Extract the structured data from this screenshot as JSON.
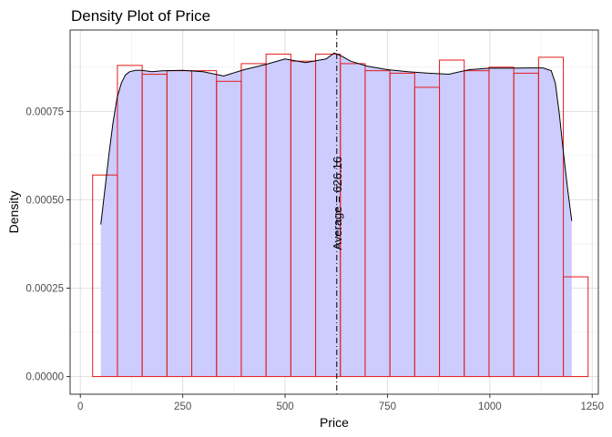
{
  "chart_data": {
    "type": "histogram+density",
    "title": "Density Plot of Price",
    "xlabel": "Price",
    "ylabel": "Density",
    "xlim": [
      -25,
      1265
    ],
    "ylim": [
      -5e-05,
      0.00098
    ],
    "x_ticks": [
      0,
      250,
      500,
      750,
      1000,
      1250
    ],
    "x_tick_labels": [
      "0",
      "250",
      "500",
      "750",
      "1000",
      "1250"
    ],
    "y_ticks": [
      0,
      0.00025,
      0.0005,
      0.00075
    ],
    "y_tick_labels": [
      "0.00000",
      "0.00025",
      "0.00050",
      "0.00075"
    ],
    "grid": true,
    "histogram": {
      "bin_width": 60.5,
      "border_color": "#e41a1c",
      "bins": [
        {
          "x0": 30,
          "x1": 90.5,
          "density": 0.00057
        },
        {
          "x0": 90.5,
          "x1": 151,
          "density": 0.00088
        },
        {
          "x0": 151,
          "x1": 211.5,
          "density": 0.000855
        },
        {
          "x0": 211.5,
          "x1": 272,
          "density": 0.000865
        },
        {
          "x0": 272,
          "x1": 332.5,
          "density": 0.000865
        },
        {
          "x0": 332.5,
          "x1": 393,
          "density": 0.000835
        },
        {
          "x0": 393,
          "x1": 453.5,
          "density": 0.000885
        },
        {
          "x0": 453.5,
          "x1": 514,
          "density": 0.000912
        },
        {
          "x0": 514,
          "x1": 574.5,
          "density": 0.000892
        },
        {
          "x0": 574.5,
          "x1": 635,
          "density": 0.000912
        },
        {
          "x0": 635,
          "x1": 695.5,
          "density": 0.000885
        },
        {
          "x0": 695.5,
          "x1": 756,
          "density": 0.000865
        },
        {
          "x0": 756,
          "x1": 816.5,
          "density": 0.000858
        },
        {
          "x0": 816.5,
          "x1": 877,
          "density": 0.000818
        },
        {
          "x0": 877,
          "x1": 937.5,
          "density": 0.000895
        },
        {
          "x0": 937.5,
          "x1": 998,
          "density": 0.000865
        },
        {
          "x0": 998,
          "x1": 1058.5,
          "density": 0.000875
        },
        {
          "x0": 1058.5,
          "x1": 1119,
          "density": 0.000858
        },
        {
          "x0": 1119,
          "x1": 1179.5,
          "density": 0.000903
        },
        {
          "x0": 1179.5,
          "x1": 1240,
          "density": 0.000282
        }
      ]
    },
    "density": {
      "fill_color": "#ccccff",
      "line_color": "#000000",
      "x": [
        50,
        60,
        70,
        80,
        90,
        100,
        110,
        120,
        135,
        150,
        175,
        200,
        250,
        300,
        350,
        400,
        450,
        500,
        550,
        600,
        620,
        640,
        660,
        700,
        750,
        800,
        850,
        900,
        950,
        1000,
        1050,
        1100,
        1130,
        1150,
        1160,
        1170,
        1180,
        1190,
        1200
      ],
      "y": [
        0.00043,
        0.00053,
        0.00063,
        0.00072,
        0.00079,
        0.00083,
        0.000853,
        0.000862,
        0.000866,
        0.000866,
        0.000862,
        0.000865,
        0.000866,
        0.000862,
        0.00085,
        0.000868,
        0.000882,
        0.000898,
        0.000888,
        0.000898,
        0.000915,
        0.000905,
        0.000892,
        0.000878,
        0.000868,
        0.000862,
        0.000858,
        0.000855,
        0.000868,
        0.000872,
        0.000872,
        0.000873,
        0.000873,
        0.000865,
        0.00083,
        0.00074,
        0.00063,
        0.00053,
        0.00044
      ]
    },
    "vline": {
      "x": 626.16,
      "style": "dashdot",
      "label": "Average = 626.16"
    }
  }
}
